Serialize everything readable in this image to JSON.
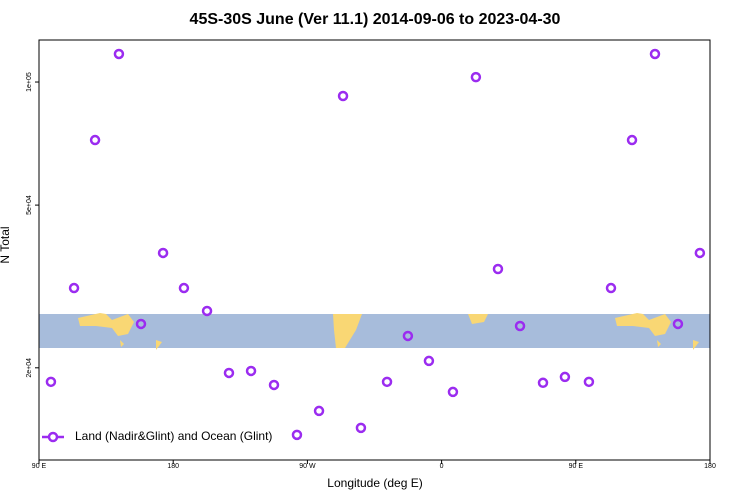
{
  "chart_data": {
    "type": "scatter",
    "title": "45S-30S June (Ver 11.1)   2014-09-06 to 2023-04-30",
    "x_label": "Longitude (deg E)",
    "y_label": "N Total",
    "log_y": true,
    "xlim": [
      90,
      540
    ],
    "ylim": [
      11900,
      126700
    ],
    "xticks": [
      {
        "value": 90,
        "label": "90 E"
      },
      {
        "value": 180,
        "label": "180"
      },
      {
        "value": 270,
        "label": "90 W"
      },
      {
        "value": 360,
        "label": "0"
      },
      {
        "value": 450,
        "label": "90 E"
      },
      {
        "value": 540,
        "label": "180"
      }
    ],
    "yticks": [
      {
        "value": 20000,
        "label": "2e+04"
      },
      {
        "value": 50000,
        "label": "5e+04"
      },
      {
        "value": 100000,
        "label": "1e+05"
      }
    ],
    "legend_position": "bottom-left",
    "series": [
      {
        "name": "Land (Nadir&Glint) and Ocean (Glint)",
        "color": "#9b2cf0",
        "x": [
          98.0,
          113.5,
          127.6,
          143.6,
          158.4,
          173.2,
          187.2,
          202.7,
          217.4,
          232.2,
          247.6,
          263.0,
          277.8,
          293.9,
          305.9,
          323.4,
          337.4,
          351.5,
          367.6,
          383.0,
          397.8,
          412.6,
          428.0,
          442.7,
          458.8,
          473.6,
          487.7,
          503.1,
          518.5,
          533.2
        ],
        "values": [
          18480,
          31340,
          72130,
          117100,
          25600,
          38190,
          31340,
          27550,
          19430,
          19650,
          18160,
          13710,
          15690,
          92430,
          14260,
          18480,
          23930,
          20790,
          17460,
          102800,
          34890,
          25310,
          18380,
          19000,
          18480,
          31340,
          72130,
          117100,
          25600,
          38190
        ]
      }
    ]
  }
}
